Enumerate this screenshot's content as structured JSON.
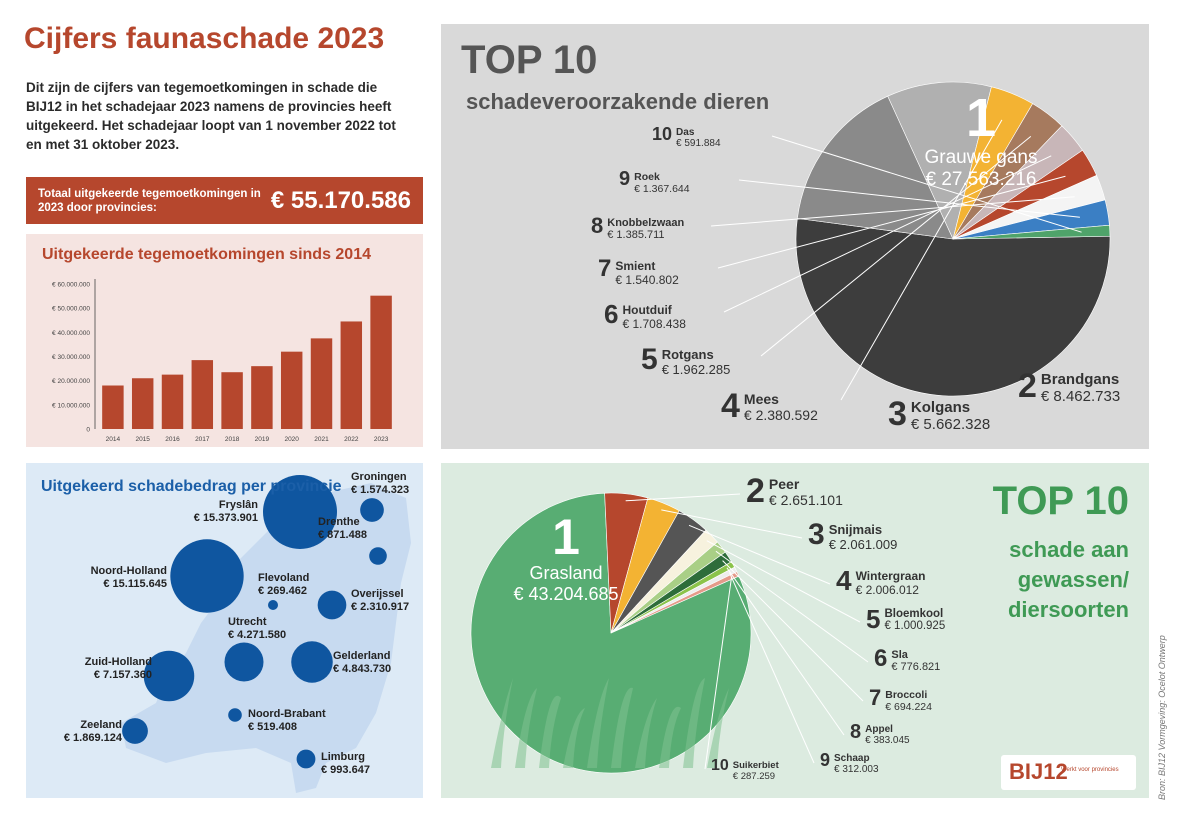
{
  "title": "Cijfers faunaschade 2023",
  "intro": "Dit zijn de cijfers van tegemoetkomingen in schade die BIJ12 in het schadejaar 2023 namens de provincies heeft uitgekeerd. Het schadejaar loopt van 1 november 2022 tot en met 31 oktober 2023.",
  "total": {
    "label": "Totaal uitgekeerde tegemoetkomingen in 2023 door provincies:",
    "value": "€ 55.170.586"
  },
  "colors": {
    "accent": "#b6472d",
    "blue": "#1b5fa8",
    "green": "#3f9a55"
  },
  "chart_data": [
    {
      "type": "bar",
      "title": "Uitgekeerde tegemoetkomingen sinds 2014",
      "categories": [
        "2014",
        "2015",
        "2016",
        "2017",
        "2018",
        "2019",
        "2020",
        "2021",
        "2022",
        "2023"
      ],
      "values": [
        18000000,
        21000000,
        22500000,
        28500000,
        23500000,
        26000000,
        32000000,
        37500000,
        44500000,
        55170586
      ],
      "ylim": [
        0,
        60000000
      ],
      "yticks": [
        "0",
        "€ 10.000.000",
        "€ 20.000.000",
        "€ 30.000.000",
        "€ 40.000.000",
        "€ 50.000.000",
        "€ 60.000.000"
      ],
      "color": "#b6472d"
    },
    {
      "type": "bubble-map",
      "title": "Uitgekeerd schadebedrag per provincie",
      "items": [
        {
          "name": "Groningen",
          "value": "€ 1.574.323",
          "amount": 1574323
        },
        {
          "name": "Fryslân",
          "value": "€ 15.373.901",
          "amount": 15373901
        },
        {
          "name": "Drenthe",
          "value": "€ 871.488",
          "amount": 871488
        },
        {
          "name": "Noord-Holland",
          "value": "€ 15.115.645",
          "amount": 15115645
        },
        {
          "name": "Flevoland",
          "value": "€ 269.462",
          "amount": 269462
        },
        {
          "name": "Overijssel",
          "value": "€ 2.310.917",
          "amount": 2310917
        },
        {
          "name": "Utrecht",
          "value": "€ 4.271.580",
          "amount": 4271580
        },
        {
          "name": "Gelderland",
          "value": "€ 4.843.730",
          "amount": 4843730
        },
        {
          "name": "Zuid-Holland",
          "value": "€ 7.157.360",
          "amount": 7157360
        },
        {
          "name": "Noord-Brabant",
          "value": "€ 519.408",
          "amount": 519408
        },
        {
          "name": "Zeeland",
          "value": "€ 1.869.124",
          "amount": 1869124
        },
        {
          "name": "Limburg",
          "value": "€ 993.647",
          "amount": 993647
        }
      ],
      "color": "#0f56a0"
    },
    {
      "type": "pie",
      "title": "TOP 10",
      "subtitle": "schadeveroorzakende dieren",
      "items": [
        {
          "rank": "1",
          "name": "Grauwe gans",
          "value": "€ 27.563.216",
          "amount": 27563216,
          "color": "#3d3d3d"
        },
        {
          "rank": "2",
          "name": "Brandgans",
          "value": "€ 8.462.733",
          "amount": 8462733,
          "color": "#8a8a8a"
        },
        {
          "rank": "3",
          "name": "Kolgans",
          "value": "€ 5.662.328",
          "amount": 5662328,
          "color": "#b0b0b0"
        },
        {
          "rank": "4",
          "name": "Mees",
          "value": "€ 2.380.592",
          "amount": 2380592,
          "color": "#f3b333"
        },
        {
          "rank": "5",
          "name": "Rotgans",
          "value": "€ 1.962.285",
          "amount": 1962285,
          "color": "#a67a5e"
        },
        {
          "rank": "6",
          "name": "Houtduif",
          "value": "€ 1.708.438",
          "amount": 1708438,
          "color": "#c8b6b8"
        },
        {
          "rank": "7",
          "name": "Smient",
          "value": "€ 1.540.802",
          "amount": 1540802,
          "color": "#b6472d"
        },
        {
          "rank": "8",
          "name": "Knobbelzwaan",
          "value": "€ 1.385.711",
          "amount": 1385711,
          "color": "#f4f4f4"
        },
        {
          "rank": "9",
          "name": "Roek",
          "value": "€ 1.367.644",
          "amount": 1367644,
          "color": "#3b7fc4"
        },
        {
          "rank": "10",
          "name": "Das",
          "value": "€ 591.884",
          "amount": 591884,
          "color": "#4fa36a"
        }
      ]
    },
    {
      "type": "pie",
      "title": "TOP 10",
      "subtitle": "schade aan gewassen/ diersoorten",
      "items": [
        {
          "rank": "1",
          "name": "Grasland",
          "value": "€ 43.204.685",
          "amount": 43204685,
          "color": "#58ad73"
        },
        {
          "rank": "2",
          "name": "Peer",
          "value": "€ 2.651.101",
          "amount": 2651101,
          "color": "#b6472d"
        },
        {
          "rank": "3",
          "name": "Snijmais",
          "value": "€ 2.061.009",
          "amount": 2061009,
          "color": "#f3b333"
        },
        {
          "rank": "4",
          "name": "Wintergraan",
          "value": "€ 2.006.012",
          "amount": 2006012,
          "color": "#555555"
        },
        {
          "rank": "5",
          "name": "Bloemkool",
          "value": "€ 1.000.925",
          "amount": 1000925,
          "color": "#f7f2de"
        },
        {
          "rank": "6",
          "name": "Sla",
          "value": "€ 776.821",
          "amount": 776821,
          "color": "#a9cf86"
        },
        {
          "rank": "7",
          "name": "Broccoli",
          "value": "€ 694.224",
          "amount": 694224,
          "color": "#2e6d3a"
        },
        {
          "rank": "8",
          "name": "Appel",
          "value": "€ 383.045",
          "amount": 383045,
          "color": "#8bc34a"
        },
        {
          "rank": "9",
          "name": "Schaap",
          "value": "€ 312.003",
          "amount": 312003,
          "color": "#eeeeee"
        },
        {
          "rank": "10",
          "name": "Suikerbiet",
          "value": "€ 287.259",
          "amount": 287259,
          "color": "#e59a8a"
        }
      ]
    }
  ],
  "logo": {
    "mark": "BIJ12",
    "tagline": "Werkt voor provincies"
  },
  "credits": "Bron: BIJ12    Vormgeving: Ocelot Ontwerp"
}
